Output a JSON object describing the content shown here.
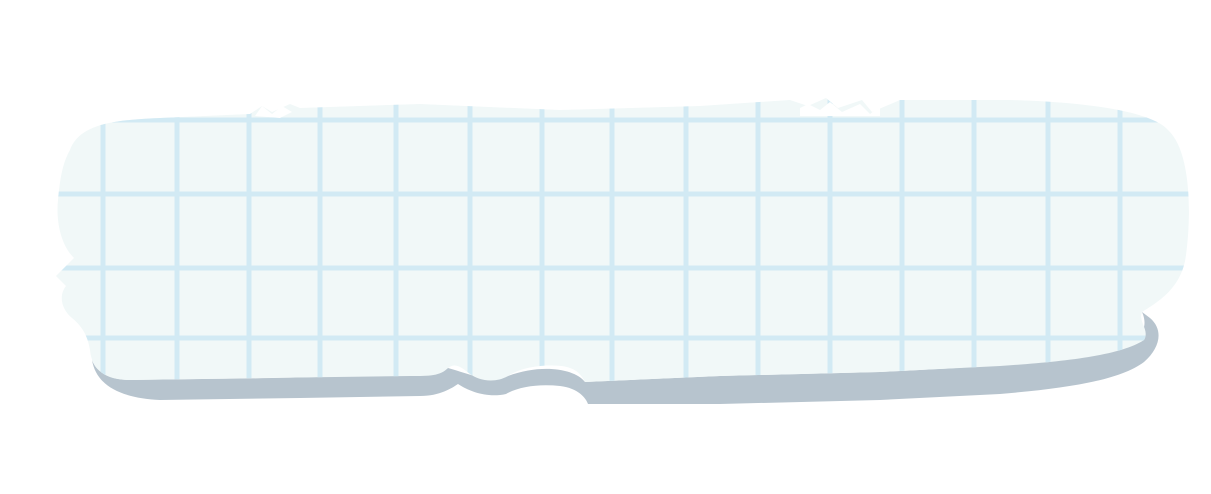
{
  "illustration": {
    "name": "torn-graph-paper-scrap",
    "colors": {
      "background": "#ffffff",
      "paper": "#f1f8f8",
      "grid": "#d2eaf4",
      "shadow": "#b7c4ce",
      "shadow_edge": "#a9b7c2"
    }
  }
}
